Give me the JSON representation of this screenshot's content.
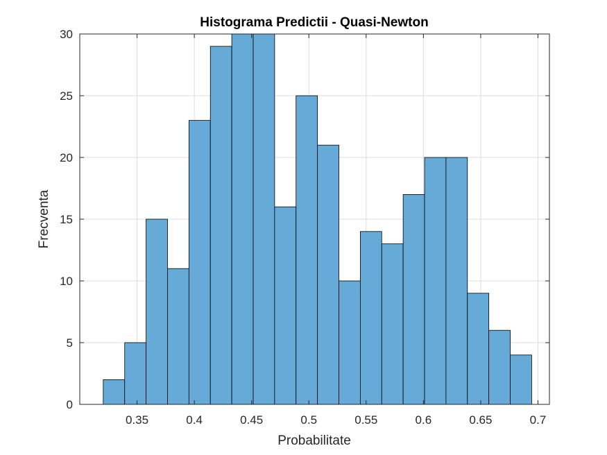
{
  "chart_data": {
    "type": "bar",
    "title": "Histograma Predictii - Quasi-Newton",
    "xlabel": "Probabilitate",
    "ylabel": "Frecventa",
    "xlim": [
      0.3,
      0.71
    ],
    "ylim": [
      0,
      30
    ],
    "x_ticks": [
      "0.35",
      "0.4",
      "0.45",
      "0.5",
      "0.55",
      "0.6",
      "0.65",
      "0.7"
    ],
    "y_ticks": [
      "0",
      "5",
      "10",
      "15",
      "20",
      "25",
      "30"
    ],
    "bin_edges": [
      0.3205,
      0.3392,
      0.3579,
      0.3766,
      0.3953,
      0.414,
      0.4327,
      0.4514,
      0.4701,
      0.4888,
      0.5075,
      0.5262,
      0.5449,
      0.5636,
      0.5823,
      0.601,
      0.6197,
      0.6384,
      0.6571,
      0.6758,
      0.6945
    ],
    "values": [
      2,
      5,
      15,
      11,
      23,
      29,
      30,
      30,
      16,
      25,
      21,
      10,
      14,
      13,
      17,
      20,
      20,
      9,
      6,
      4
    ],
    "grid": true,
    "bar_color": "#66aad8",
    "edge_color": "#000000",
    "legend": "none"
  }
}
